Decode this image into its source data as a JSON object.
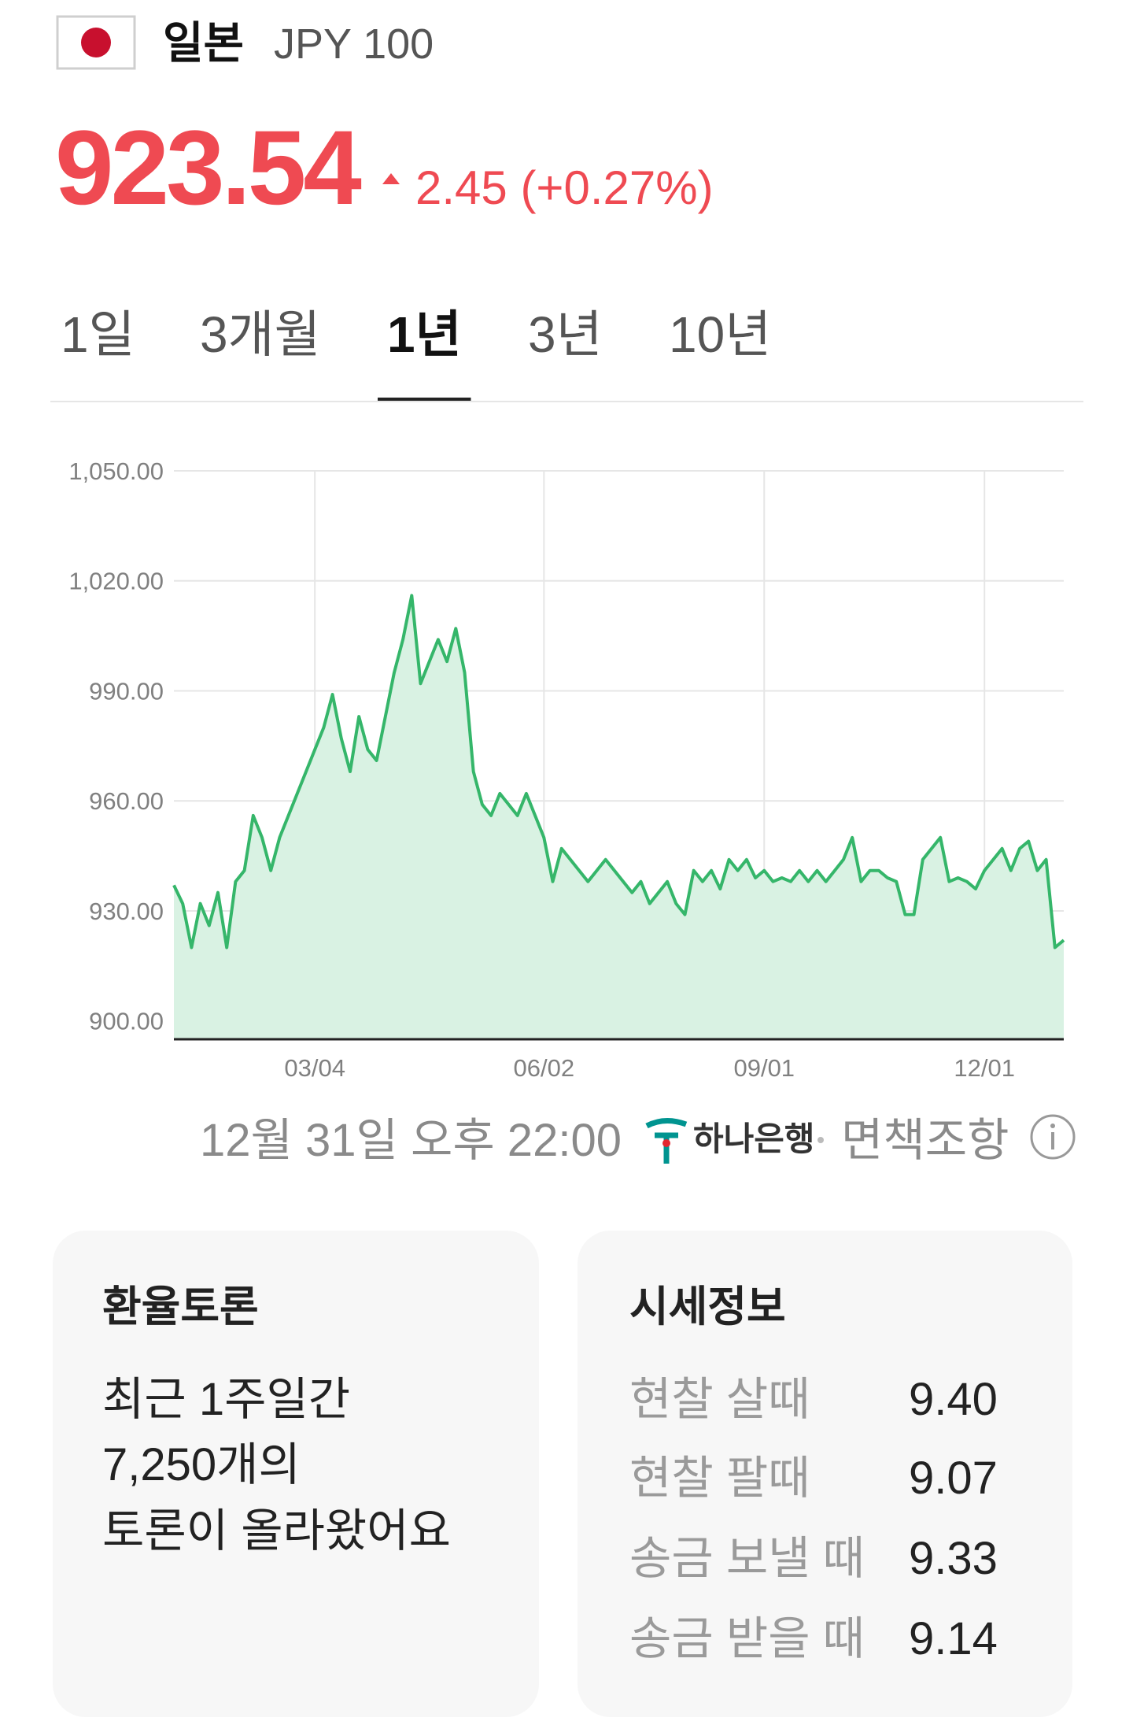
{
  "header": {
    "country": "일본",
    "code": "JPY 100"
  },
  "price": {
    "value": "923.54",
    "change": "2.45",
    "change_pct": "(+0.27%)"
  },
  "tabs": {
    "items": [
      "1일",
      "3개월",
      "1년",
      "3년",
      "10년"
    ],
    "active": 2
  },
  "chart_data": {
    "type": "line",
    "color": "#35b66a",
    "fill_color": "#d9f2e3",
    "grid": true,
    "categories": [
      null,
      null,
      null,
      null,
      null,
      null,
      null,
      null,
      null,
      null,
      null,
      null,
      null,
      null,
      null,
      null,
      "03/04",
      null,
      null,
      null,
      null,
      null,
      null,
      null,
      null,
      null,
      null,
      null,
      null,
      null,
      null,
      null,
      null,
      null,
      null,
      null,
      null,
      null,
      null,
      null,
      null,
      null,
      "06/02",
      null,
      null,
      null,
      null,
      null,
      null,
      null,
      null,
      null,
      null,
      null,
      null,
      null,
      null,
      null,
      null,
      null,
      null,
      null,
      null,
      null,
      null,
      null,
      null,
      "09/01",
      null,
      null,
      null,
      null,
      null,
      null,
      null,
      null,
      null,
      null,
      null,
      null,
      null,
      null,
      null,
      null,
      null,
      null,
      null,
      null,
      null,
      null,
      null,
      null,
      "12/01",
      null,
      null,
      null,
      null,
      null,
      null,
      null,
      null,
      null
    ],
    "values": [
      937,
      932,
      920,
      932,
      926,
      935,
      920,
      938,
      941,
      956,
      950,
      941,
      950,
      956,
      962,
      968,
      974,
      980,
      989,
      977,
      968,
      983,
      974,
      971,
      983,
      995,
      1004,
      1016,
      992,
      998,
      1004,
      998,
      1007,
      995,
      968,
      959,
      956,
      962,
      959,
      956,
      962,
      956,
      950,
      938,
      947,
      944,
      941,
      938,
      941,
      944,
      941,
      938,
      935,
      938,
      932,
      935,
      938,
      932,
      929,
      941,
      938,
      941,
      936,
      944,
      941,
      944,
      939,
      941,
      938,
      939,
      938,
      941,
      938,
      941,
      938,
      941,
      944,
      950,
      938,
      941,
      941,
      939,
      938,
      929,
      929,
      944,
      947,
      950,
      938,
      939,
      938,
      936,
      941,
      944,
      947,
      941,
      947,
      949,
      941,
      944,
      920,
      922
    ],
    "ylim": [
      895,
      1050
    ],
    "yticks": [
      {
        "value": 900,
        "label": "900.00"
      },
      {
        "value": 930,
        "label": "930.00"
      },
      {
        "value": 960,
        "label": "960.00"
      },
      {
        "value": 990,
        "label": "990.00"
      },
      {
        "value": 1020,
        "label": "1,020.00"
      },
      {
        "value": 1050,
        "label": "1,050.00"
      }
    ]
  },
  "footer": {
    "timestamp": "12월 31일 오후 22:00",
    "source": "하나은행",
    "disclaimer": "면책조항"
  },
  "discussion": {
    "title": "환율토론",
    "lines": [
      "최근 1주일간",
      "7,250개의",
      "토론이 올라왔어요"
    ]
  },
  "quotes": {
    "title": "시세정보",
    "rows": [
      {
        "label": "현찰 살때",
        "value": "9.40"
      },
      {
        "label": "현찰 팔때",
        "value": "9.07"
      },
      {
        "label": "송금 보낼 때",
        "value": "9.33"
      },
      {
        "label": "송금 받을 때",
        "value": "9.14"
      }
    ]
  }
}
